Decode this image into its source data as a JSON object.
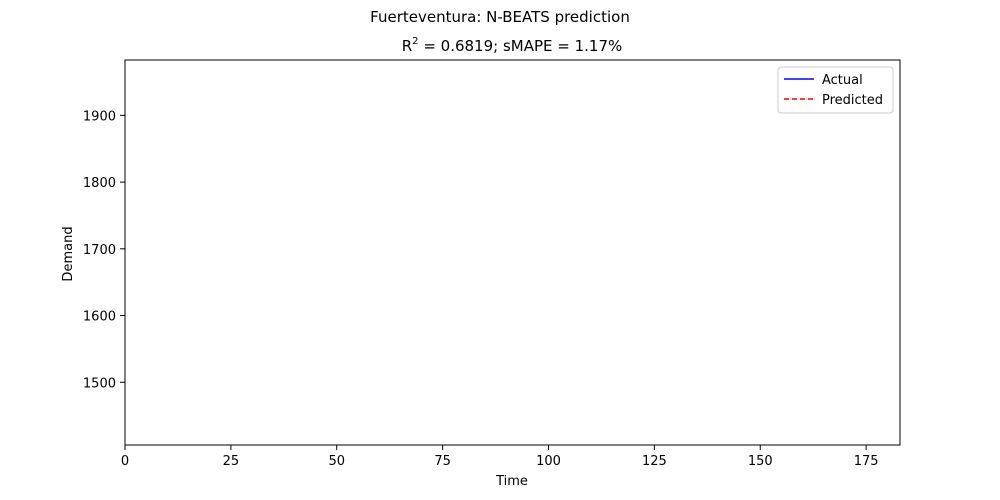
{
  "chart_data": {
    "type": "line",
    "title": "Fuerteventura: N-BEATS prediction",
    "subtitle_parts": {
      "pre": "R",
      "sup": "2",
      "post": " = 0.6819; sMAPE = 1.17%"
    },
    "xlabel": "Time",
    "ylabel": "Demand",
    "xlim": [
      0,
      183
    ],
    "ylim": [
      1406,
      1983
    ],
    "xticks": [
      0,
      25,
      50,
      75,
      100,
      125,
      150,
      175
    ],
    "yticks": [
      1500,
      1600,
      1700,
      1800,
      1900
    ],
    "grid": false,
    "legend_position": "top-right",
    "series": [
      {
        "name": "Actual",
        "color": "#0000ff",
        "dash": "solid",
        "x": [],
        "y": []
      },
      {
        "name": "Predicted",
        "color": "#ff0000",
        "dash": "dashed",
        "x": [],
        "y": []
      }
    ]
  }
}
